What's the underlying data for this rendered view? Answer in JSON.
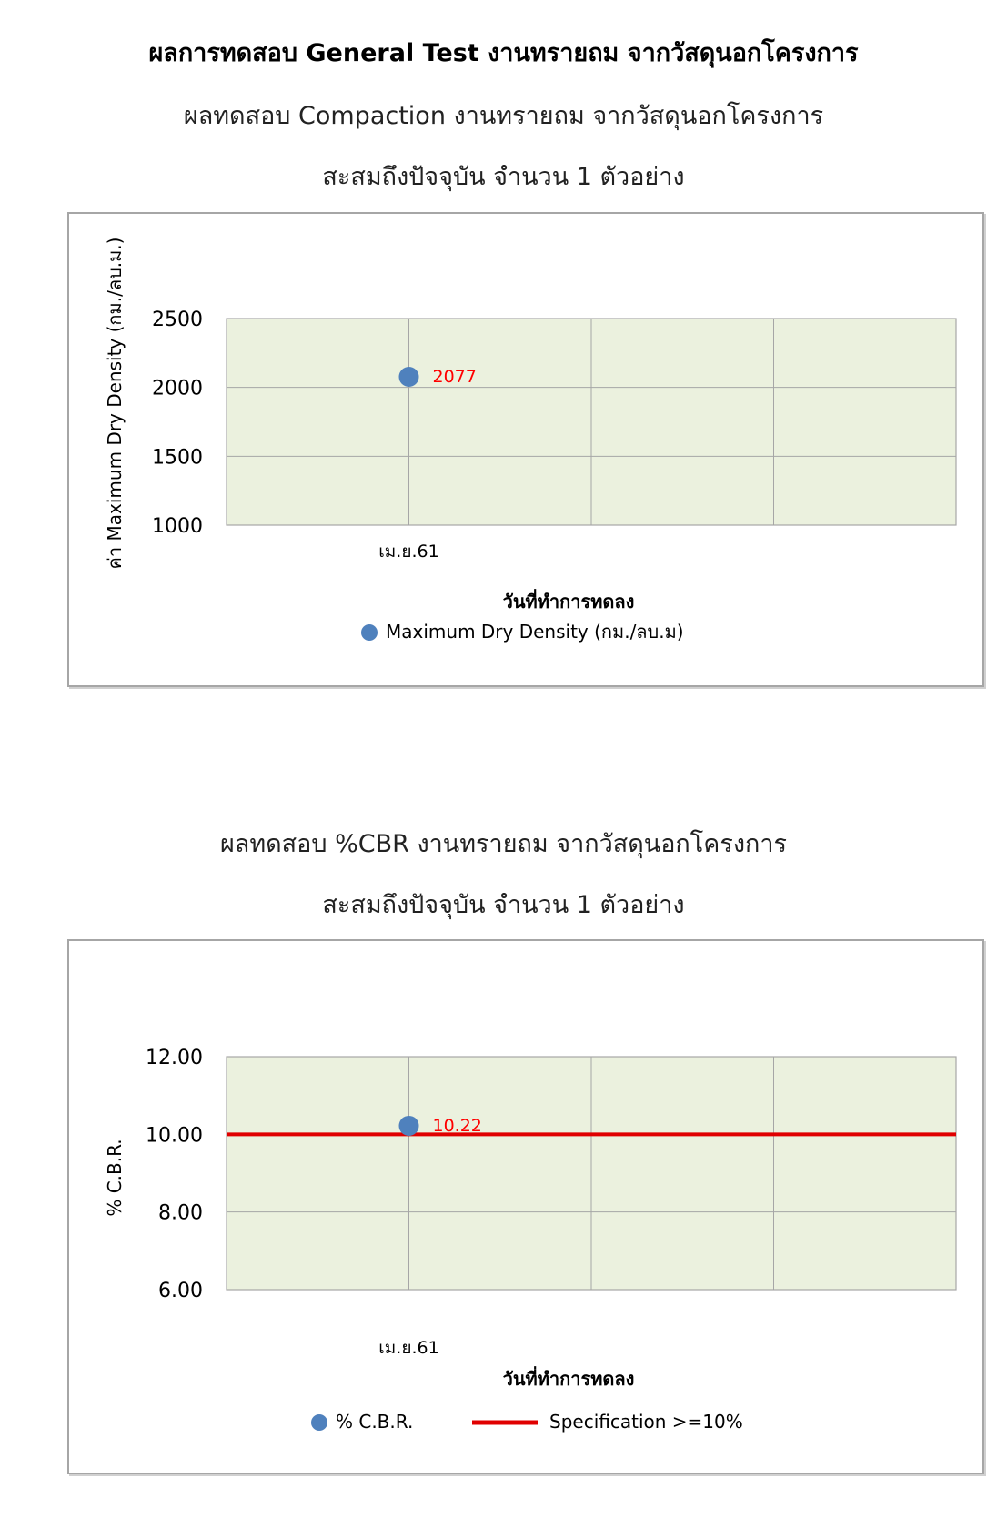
{
  "page": {
    "title": "ผลการทดสอบ General Test งานทรายถม จากวัสดุนอกโครงการ"
  },
  "charts_text": [
    {
      "subtitle": "ผลทดสอบ Compaction งานทรายถม จากวัสดุนอกโครงการ",
      "subtitle2": "สะสมถึงปัจจุบัน จำนวน 1 ตัวอย่าง"
    },
    {
      "subtitle": "ผลทดสอบ %CBR งานทรายถม จากวัสดุนอกโครงการ",
      "subtitle2": "สะสมถึงปัจจุบัน จำนวน 1 ตัวอย่าง"
    }
  ],
  "colors": {
    "plot_bg": "#ebf1de",
    "grid": "#a6a6a6",
    "marker": "#4f81bd",
    "label": "#ff0000",
    "spec_line": "#e00000"
  },
  "chart_data": [
    {
      "type": "scatter",
      "categories": [
        "เม.ย.61",
        "",
        "",
        ""
      ],
      "series": [
        {
          "name": "Maximum Dry Density (กม./ลบ.ม)",
          "values": [
            2077
          ]
        }
      ],
      "data_labels": [
        "2077"
      ],
      "xlabel": "วันที่ทำการทดลง",
      "ylabel": "ค่า Maximum Dry Density (กม./ลบ.ม.)",
      "ylim": [
        1000,
        2500
      ],
      "yticks": [
        "1000",
        "1500",
        "2000",
        "2500"
      ],
      "grid": true,
      "legend": "bottom"
    },
    {
      "type": "scatter",
      "categories": [
        "เม.ย.61",
        "",
        "",
        ""
      ],
      "series": [
        {
          "name": "% C.B.R.",
          "values": [
            10.22
          ]
        }
      ],
      "data_labels": [
        "10.22"
      ],
      "spec_line": {
        "name": "Specification >=10%",
        "value": 10.0
      },
      "xlabel": "วันที่ทำการทดลง",
      "ylabel": "% C.B.R.",
      "ylim": [
        6.0,
        12.0
      ],
      "yticks": [
        "6.00",
        "8.00",
        "10.00",
        "12.00"
      ],
      "grid": true,
      "legend": "bottom"
    }
  ]
}
